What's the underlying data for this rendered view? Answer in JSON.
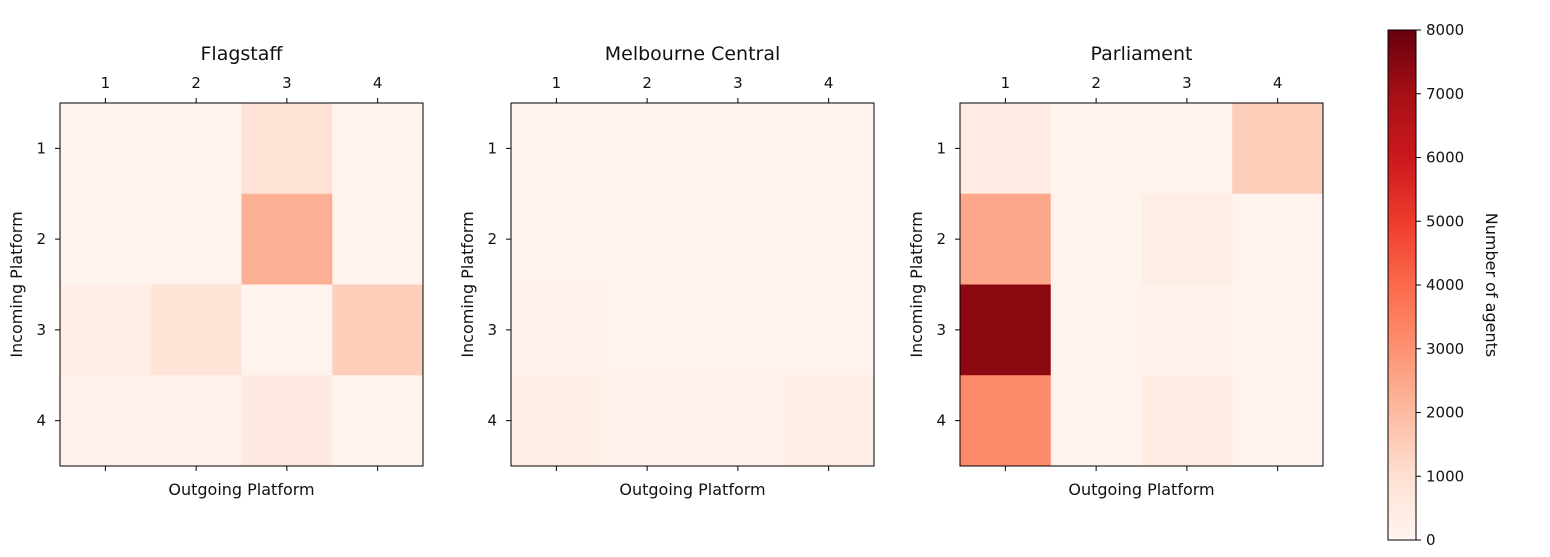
{
  "chart_data": [
    {
      "type": "heatmap",
      "title": "Flagstaff",
      "xlabel": "Outgoing Platform",
      "ylabel": "Incoming Platform",
      "x_categories": [
        "1",
        "2",
        "3",
        "4"
      ],
      "y_categories": [
        "1",
        "2",
        "3",
        "4"
      ],
      "values": [
        [
          100,
          100,
          900,
          100
        ],
        [
          100,
          100,
          2300,
          100
        ],
        [
          350,
          850,
          100,
          1500
        ],
        [
          150,
          150,
          550,
          100
        ]
      ]
    },
    {
      "type": "heatmap",
      "title": "Melbourne Central",
      "xlabel": "Outgoing Platform",
      "ylabel": "Incoming Platform",
      "x_categories": [
        "1",
        "2",
        "3",
        "4"
      ],
      "y_categories": [
        "1",
        "2",
        "3",
        "4"
      ],
      "values": [
        [
          100,
          100,
          100,
          100
        ],
        [
          100,
          100,
          100,
          100
        ],
        [
          150,
          100,
          100,
          100
        ],
        [
          300,
          150,
          150,
          350
        ]
      ]
    },
    {
      "type": "heatmap",
      "title": "Parliament",
      "xlabel": "Outgoing Platform",
      "ylabel": "Incoming Platform",
      "x_categories": [
        "1",
        "2",
        "3",
        "4"
      ],
      "y_categories": [
        "1",
        "2",
        "3",
        "4"
      ],
      "values": [
        [
          500,
          100,
          100,
          1500
        ],
        [
          2500,
          100,
          350,
          100
        ],
        [
          7400,
          100,
          150,
          100
        ],
        [
          3200,
          100,
          400,
          100
        ]
      ]
    }
  ],
  "colorbar": {
    "label": "Number of agents",
    "min": 0,
    "max": 8000,
    "ticks": [
      "0",
      "1000",
      "2000",
      "3000",
      "4000",
      "5000",
      "6000",
      "7000",
      "8000"
    ],
    "colormap": "Reds",
    "colormap_stops": [
      "#fff5f0",
      "#fee0d2",
      "#fcbba1",
      "#fc9272",
      "#fb6a4a",
      "#ef3b2c",
      "#cb181d",
      "#a50f15",
      "#67000d"
    ]
  }
}
